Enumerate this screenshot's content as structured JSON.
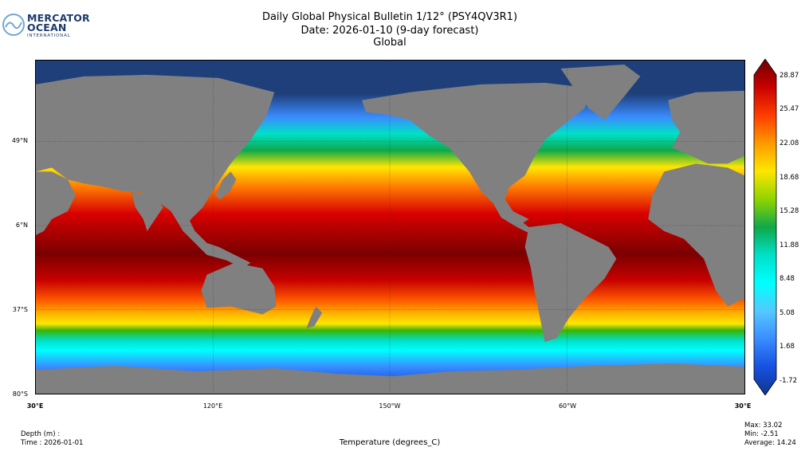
{
  "logo": {
    "line1": "MERCATOR",
    "line2": "OCEAN",
    "line3": "INTERNATIONAL"
  },
  "title": {
    "line1": "Daily Global Physical Bulletin 1/12° (PSY4QV3R1)",
    "line2": "Date: 2026-01-10 (9-day forecast)",
    "line3": "Global"
  },
  "axes": {
    "lat_labels": [
      "49°N",
      "6°N",
      "37°S",
      "80°S"
    ],
    "lon_labels": [
      "30°E",
      "120°E",
      "150°W",
      "60°W",
      "30°E"
    ]
  },
  "colorbar": {
    "ticks": [
      "28.87",
      "25.47",
      "22.08",
      "18.68",
      "15.28",
      "11.88",
      "8.48",
      "5.08",
      "1.68",
      "-1.72"
    ],
    "colors": [
      "#6b0000",
      "#c80000",
      "#ff3c00",
      "#ff9900",
      "#ffe600",
      "#8fd400",
      "#0fa84a",
      "#00e0c8",
      "#00ffff",
      "#55c8ff",
      "#3a8cff",
      "#1550e0",
      "#12358a"
    ]
  },
  "colors": {
    "land": "#808080",
    "ice": "#1f3f7a"
  },
  "footer": {
    "depth": "Depth (m) :",
    "time": "Time : 2026-01-01",
    "variable": "Temperature (degrees_C)",
    "max": "Max: 33.02",
    "min": "Min: -2.51",
    "average": "Average: 14.24"
  }
}
